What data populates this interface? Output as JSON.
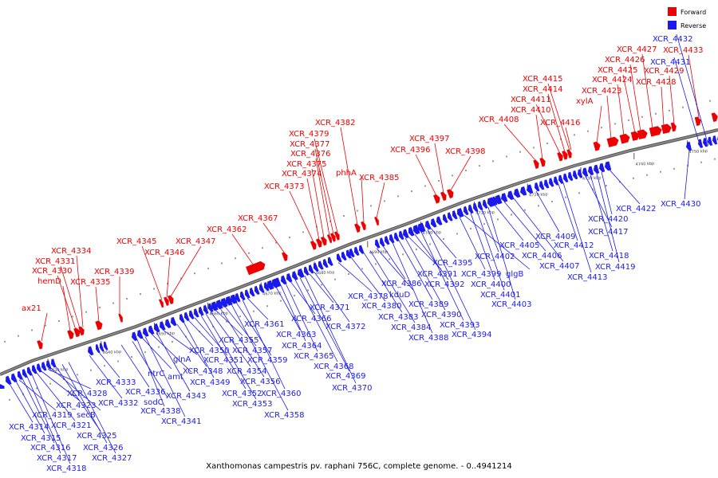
{
  "title": "Xanthomonas campestris pv. raphani 756C, complete genome. - 0..4941214",
  "colors": {
    "forward": "#ee0000",
    "reverse": "#1a1aee",
    "backbone": "#888888"
  },
  "legend": {
    "forward_label": "Forward",
    "reverse_label": "Reverse"
  },
  "axis": {
    "unit": "kbp",
    "ticks_kbp": [
      4630,
      4640,
      4650,
      4660,
      4670,
      4680,
      4690,
      4700,
      4710,
      4720,
      4730,
      4740,
      4750
    ]
  },
  "forward_genes": [
    "ax21",
    "hemD",
    "XCR_4330",
    "XCR_4331",
    "XCR_4334",
    "XCR_4335",
    "XCR_4339",
    "XCR_4345",
    "XCR_4346",
    "XCR_4347",
    "XCR_4362",
    "XCR_4367",
    "XCR_4373",
    "XCR_4374",
    "XCR_4375",
    "XCR_4376",
    "XCR_4377",
    "XCR_4379",
    "XCR_4382",
    "phhA",
    "XCR_4385",
    "XCR_4396",
    "XCR_4397",
    "XCR_4398",
    "XCR_4408",
    "XCR_4410",
    "XCR_4411",
    "XCR_4414",
    "XCR_4415",
    "XCR_4416",
    "xylA",
    "XCR_4423",
    "XCR_4424",
    "XCR_4425",
    "XCR_4426",
    "XCR_4427",
    "XCR_4428",
    "XCR_4429",
    "XCR_4433"
  ],
  "reverse_genes": [
    "XCR_4314",
    "XCR_4315",
    "XCR_4316",
    "XCR_4317",
    "XCR_4318",
    "XCR_4319",
    "XCR_4321",
    "XCR_4323",
    "secB",
    "XCR_4325",
    "XCR_4326",
    "XCR_4327",
    "XCR_4328",
    "XCR_4332",
    "XCR_4333",
    "XCR_4336",
    "sodC",
    "XCR_4338",
    "XCR_4341",
    "ntrC",
    "amt",
    "XCR_4343",
    "glnA",
    "XCR_4348",
    "XCR_4349",
    "XCR_4350",
    "XCR_4351",
    "XCR_4352",
    "XCR_4353",
    "XCR_4354",
    "XCR_4355",
    "XCR_4356",
    "XCR_4357",
    "XCR_4358",
    "XCR_4359",
    "XCR_4360",
    "XCR_4361",
    "XCR_4363",
    "XCR_4364",
    "XCR_4365",
    "XCR_4366",
    "XCR_4368",
    "XCR_4369",
    "XCR_4370",
    "XCR_4371",
    "XCR_4372",
    "XCR_4378",
    "XCR_4380",
    "XCR_4383",
    "XCR_4384",
    "kduD",
    "XCR_4386",
    "XCR_4388",
    "XCR_4389",
    "XCR_4390",
    "XCR_4391",
    "XCR_4392",
    "XCR_4393",
    "XCR_4394",
    "XCR_4395",
    "XCR_4399",
    "glgB",
    "XCR_4400",
    "XCR_4401",
    "XCR_4402",
    "XCR_4403",
    "XCR_4405",
    "XCR_4406",
    "XCR_4407",
    "XCR_4409",
    "XCR_4412",
    "XCR_4413",
    "XCR_4417",
    "XCR_4418",
    "XCR_4419",
    "XCR_4420",
    "XCR_4422",
    "XCR_4430",
    "XCR_4431",
    "XCR_4432"
  ]
}
